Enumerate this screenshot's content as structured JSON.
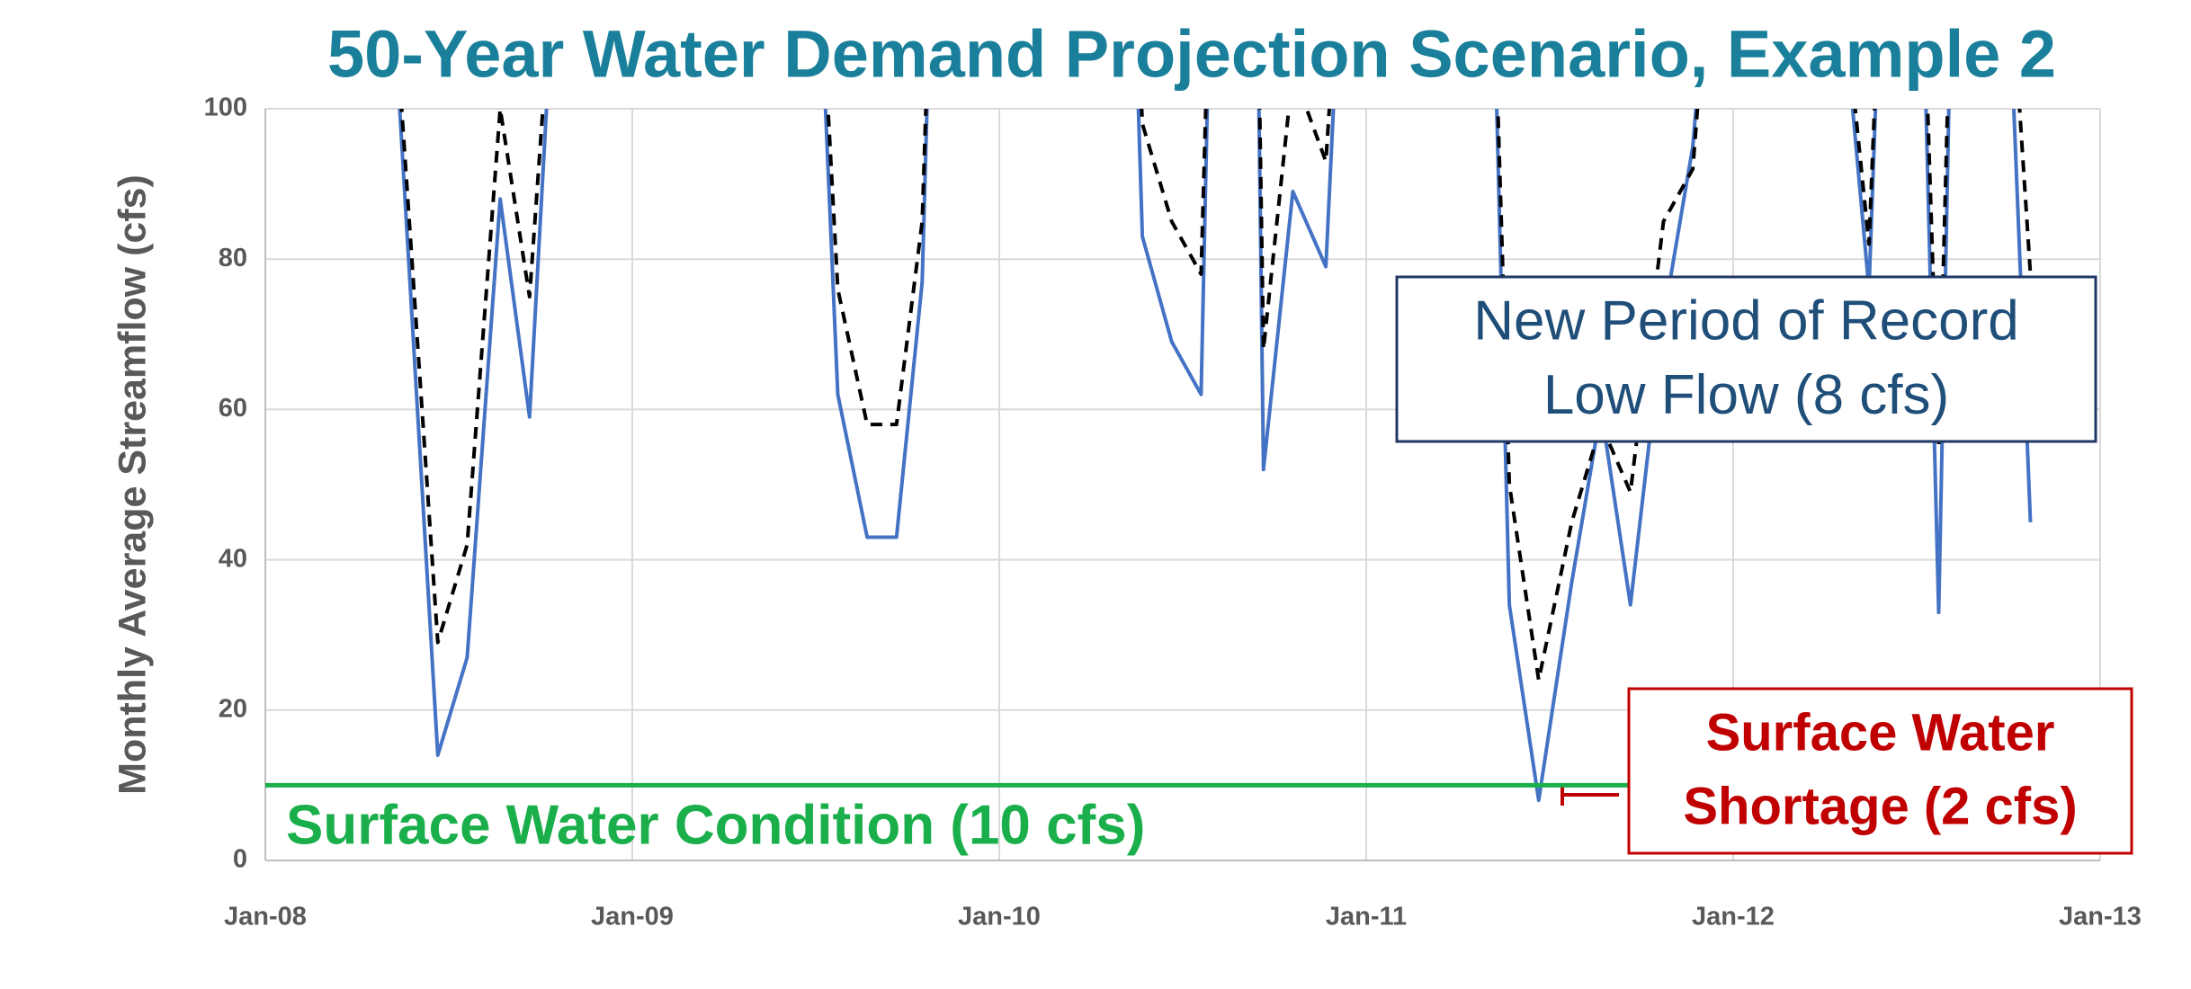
{
  "chart_data": {
    "type": "line",
    "title": "50-Year Water Demand Projection Scenario, Example 2",
    "y_label": "Monthly Average Streamflow (cfs)",
    "x": [
      2008.33,
      2008.47,
      2008.55,
      2008.64,
      2008.72,
      2008.8,
      2009.5,
      2009.56,
      2009.64,
      2009.72,
      2009.79,
      2009.82,
      2010.36,
      2010.39,
      2010.47,
      2010.55,
      2010.58,
      2010.7,
      2010.72,
      2010.8,
      2010.89,
      2010.94,
      2011.34,
      2011.39,
      2011.47,
      2011.56,
      2011.64,
      2011.72,
      2011.81,
      2011.89,
      2011.95,
      2012.27,
      2012.37,
      2012.41,
      2012.51,
      2012.56,
      2012.6,
      2012.74,
      2012.81
    ],
    "series": [
      {
        "color": "#4472c4",
        "style": "solid",
        "values": [
          130,
          14,
          27,
          88,
          59,
          130,
          130,
          62,
          43,
          43,
          77,
          130,
          130,
          83,
          69,
          62,
          130,
          130,
          52,
          89,
          79,
          130,
          130,
          34,
          8,
          37,
          60,
          34,
          72,
          95,
          130,
          130,
          76,
          130,
          130,
          33,
          130,
          130,
          45
        ]
      },
      {
        "color": "#000000",
        "style": "dashed",
        "values": [
          130,
          29,
          42,
          100,
          75,
          130,
          130,
          76,
          58,
          58,
          85,
          130,
          130,
          98,
          85,
          78,
          130,
          130,
          68,
          105,
          93,
          130,
          130,
          50,
          24,
          45,
          58,
          49,
          85,
          92,
          130,
          130,
          82,
          130,
          130,
          55,
          130,
          130,
          78
        ]
      }
    ],
    "xlim": [
      2008,
      2013
    ],
    "xticks": [
      {
        "value": 2008,
        "label": "Jan-08"
      },
      {
        "value": 2009,
        "label": "Jan-09"
      },
      {
        "value": 2010,
        "label": "Jan-10"
      },
      {
        "value": 2011,
        "label": "Jan-11"
      },
      {
        "value": 2012,
        "label": "Jan-12"
      },
      {
        "value": 2013,
        "label": "Jan-13"
      }
    ],
    "ylim": [
      0,
      100
    ],
    "yticks": [
      0,
      20,
      40,
      60,
      80,
      100
    ],
    "grid": true,
    "threshold": {
      "value": 10,
      "label": "Surface Water Condition (10 cfs)",
      "color": "#1aaf4b"
    },
    "annotations": [
      {
        "lines": [
          "New Period of Record",
          "Low Flow (8 cfs)"
        ],
        "color": "#1f4e79"
      },
      {
        "lines": [
          "Surface Water",
          "Shortage (2 cfs)"
        ],
        "color": "#c00000"
      }
    ]
  }
}
